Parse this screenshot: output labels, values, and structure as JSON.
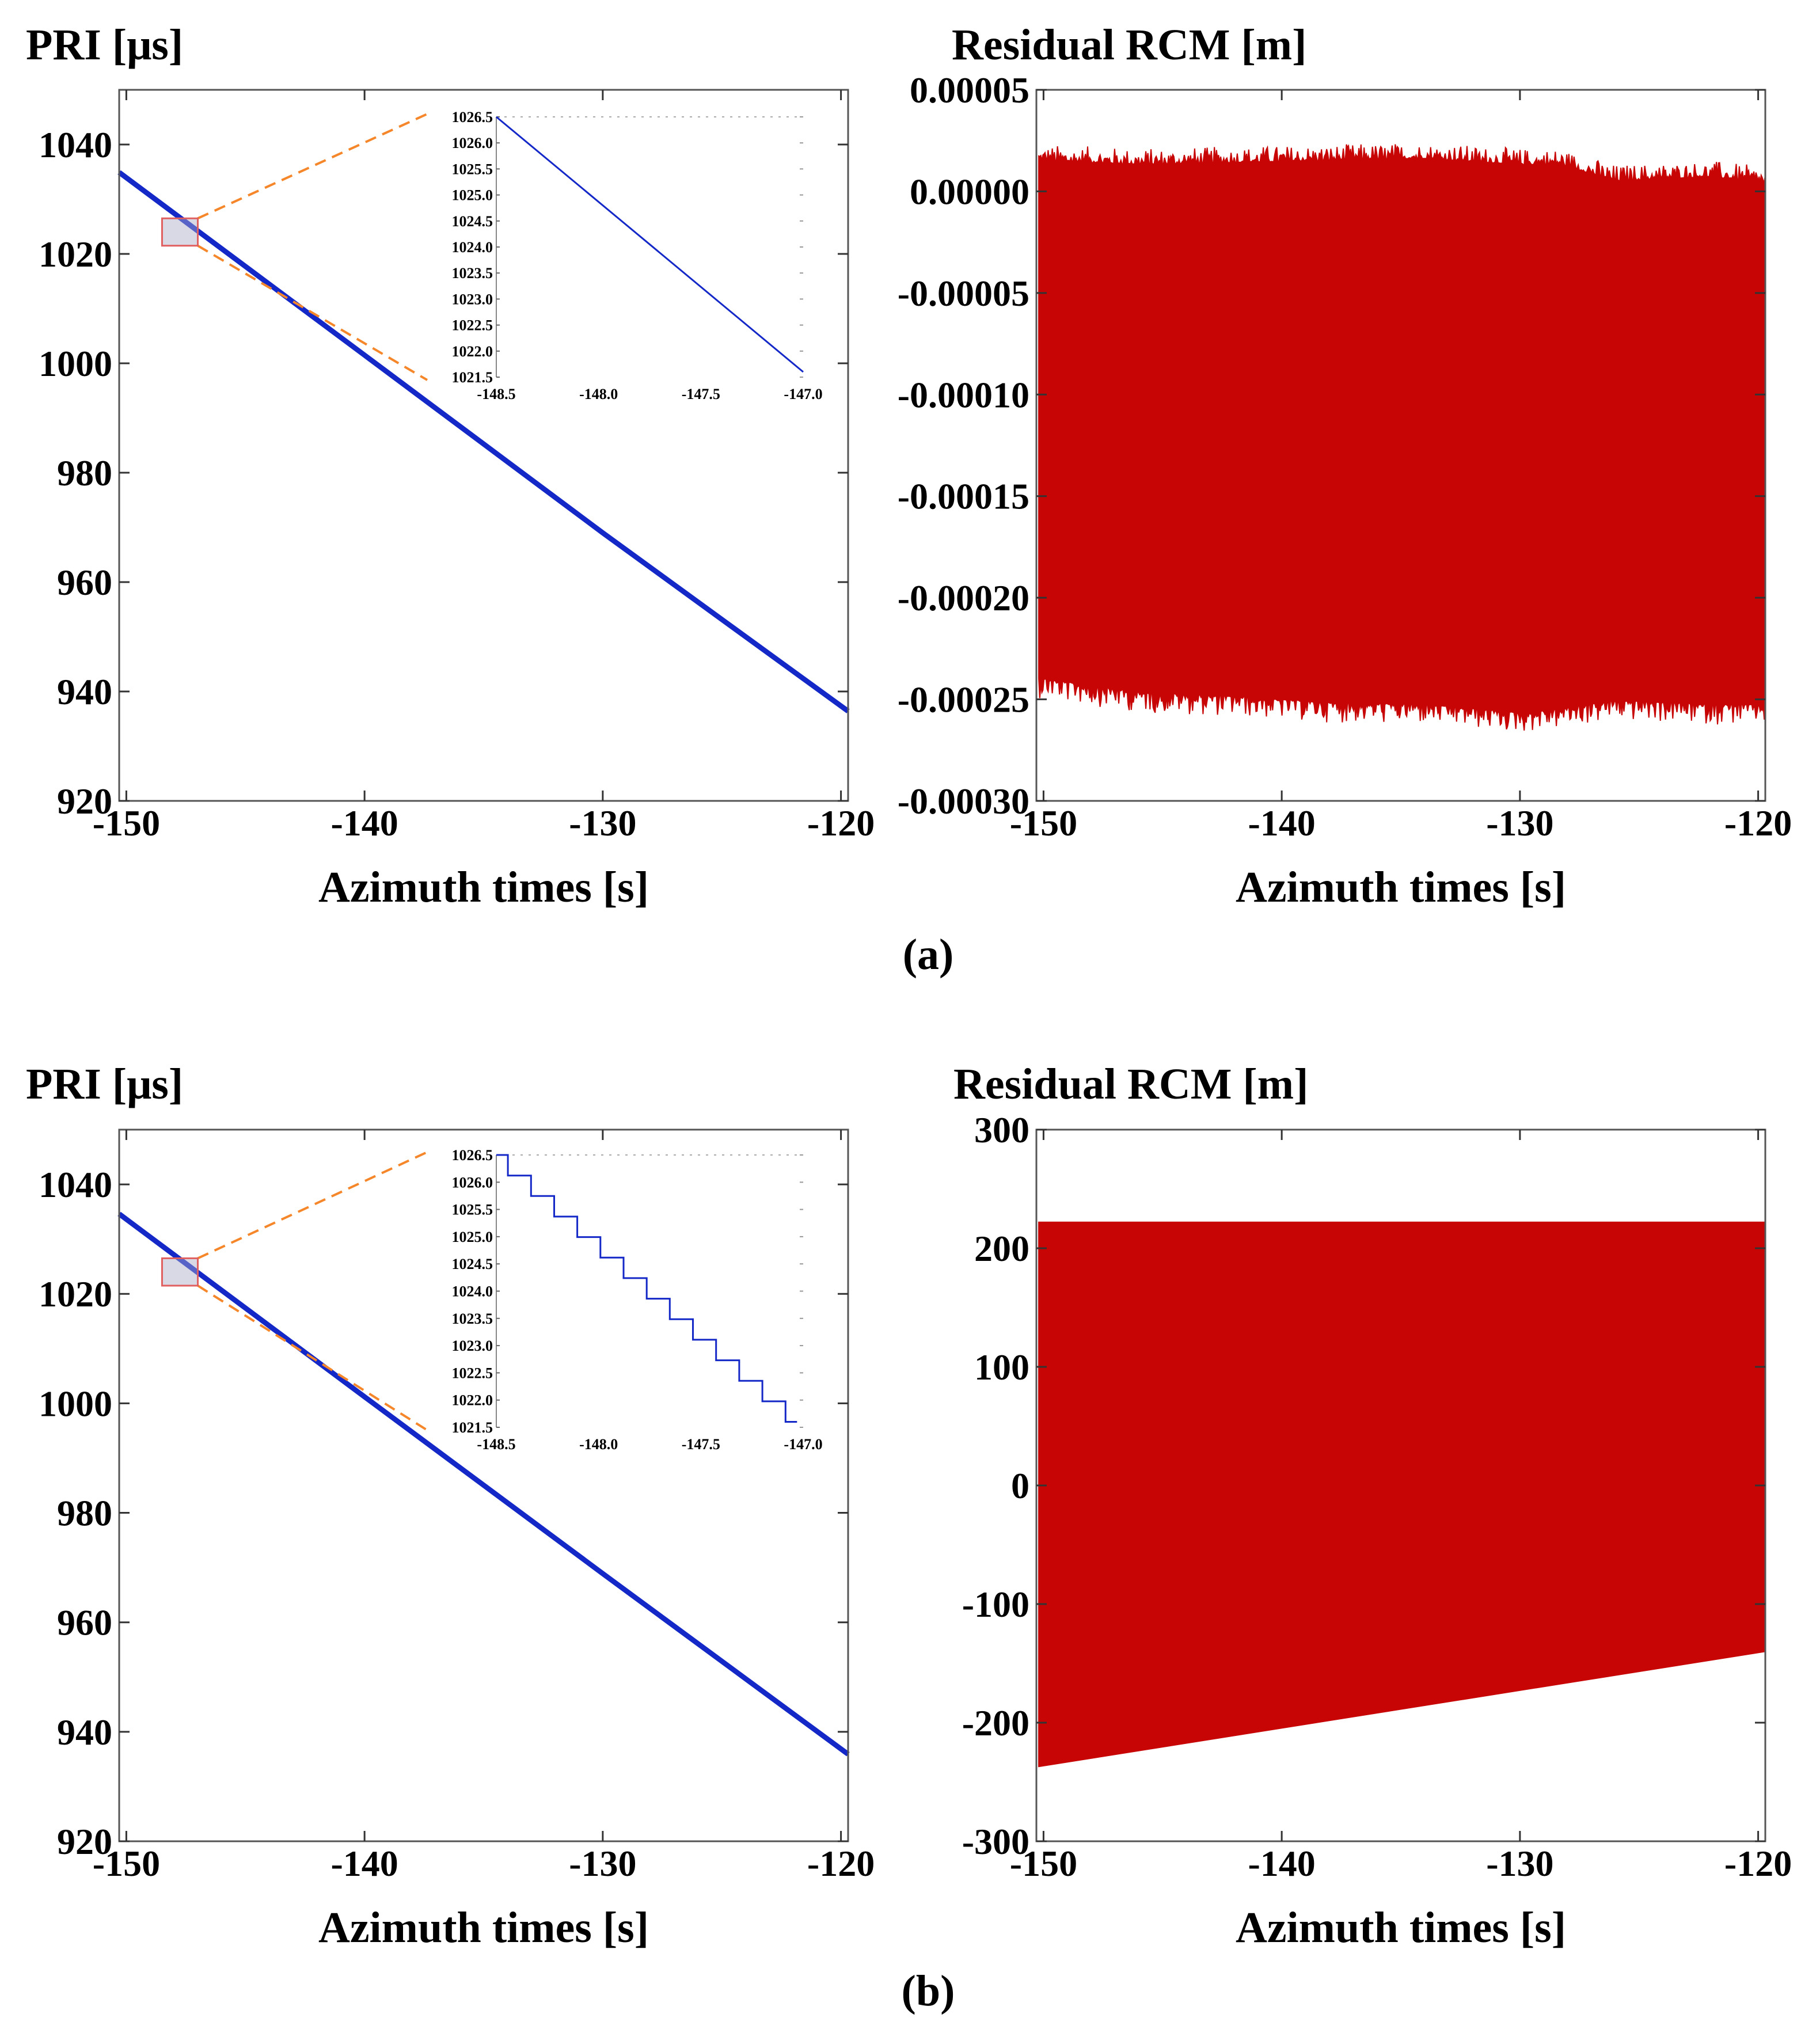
{
  "colors": {
    "pri_line": "#1428c8",
    "rcm_fill": "#c80505",
    "zoom_lines": "#f5862a",
    "zoom_box": "#e06060"
  },
  "chart_data": [
    {
      "id": "a_pri",
      "type": "line",
      "title": "",
      "ylabel": "PRI [μs]",
      "xlabel": "Azimuth times [s]",
      "xlim": [
        -150.3,
        -119.7
      ],
      "ylim": [
        920,
        1050
      ],
      "xticks": [
        -150,
        -140,
        -130,
        -120
      ],
      "yticks": [
        920,
        940,
        960,
        980,
        1000,
        1020,
        1040
      ],
      "xtick_labels": [
        "-150",
        "-140",
        "-130",
        "-120"
      ],
      "ytick_labels": [
        "920",
        "940",
        "960",
        "980",
        "1000",
        "1020",
        "1040"
      ],
      "series": [
        {
          "name": "PRI",
          "x": [
            -150.3,
            -140,
            -130,
            -119.7
          ],
          "y": [
            1034.9,
            1001.5,
            969.0,
            936.4
          ]
        }
      ],
      "zoom_box": {
        "xlim": [
          -148.5,
          -147.0
        ],
        "ylim": [
          1021.5,
          1026.5
        ]
      },
      "inset": {
        "xlim": [
          -148.5,
          -147.0
        ],
        "ylim": [
          1021.5,
          1026.5
        ],
        "xticks": [
          -148.5,
          -148.0,
          -147.5,
          -147.0
        ],
        "xtick_labels": [
          "-148.5",
          "-148.0",
          "-147.5",
          "-147.0"
        ],
        "yticks": [
          1021.5,
          1022.0,
          1022.5,
          1023.0,
          1023.5,
          1024.0,
          1024.5,
          1025.0,
          1025.5,
          1026.0,
          1026.5
        ],
        "ytick_labels": [
          "1021.5",
          "1022.0",
          "1022.5",
          "1023.0",
          "1023.5",
          "1024.0",
          "1024.5",
          "1025.0",
          "1025.5",
          "1026.0",
          "1026.5"
        ],
        "style": "smooth",
        "x": [
          -148.5,
          -147.0
        ],
        "y": [
          1026.5,
          1021.6
        ]
      }
    },
    {
      "id": "a_rcm",
      "type": "area",
      "title": "",
      "ylabel": "Residual RCM [m]",
      "xlabel": "Azimuth times [s]",
      "xlim": [
        -150.3,
        -119.7
      ],
      "ylim": [
        -0.0003,
        5e-05
      ],
      "xticks": [
        -150,
        -140,
        -130,
        -120
      ],
      "yticks": [
        -0.0003,
        -0.00025,
        -0.0002,
        -0.00015,
        -0.0001,
        -5e-05,
        0.0,
        5e-05
      ],
      "xtick_labels": [
        "-150",
        "-140",
        "-130",
        "-120"
      ],
      "ytick_labels": [
        "-0.00030",
        "-0.00025",
        "-0.00020",
        "-0.00015",
        "-0.00010",
        "-0.00005",
        "0.00000",
        "0.00005"
      ],
      "x": [
        -150.2,
        -146,
        -142,
        -138,
        -134,
        -130,
        -128.3,
        -126,
        -122,
        -119.7
      ],
      "upper": [
        1.8e-05,
        1.6e-05,
        1.7e-05,
        1.8e-05,
        1.9e-05,
        1.6e-05,
        1.6e-05,
        8e-06,
        1e-05,
        7e-06
      ],
      "lower": [
        -0.000243,
        -0.00025,
        -0.000252,
        -0.000255,
        -0.000256,
        -0.00026,
        -0.000258,
        -0.000254,
        -0.000256,
        -0.000256
      ],
      "noise_up": 8e-06,
      "noise_down": 1e-05
    },
    {
      "id": "b_pri",
      "type": "line",
      "title": "",
      "ylabel": "PRI [μs]",
      "xlabel": "Azimuth times [s]",
      "xlim": [
        -150.3,
        -119.7
      ],
      "ylim": [
        920,
        1050
      ],
      "xticks": [
        -150,
        -140,
        -130,
        -120
      ],
      "yticks": [
        920,
        940,
        960,
        980,
        1000,
        1020,
        1040
      ],
      "xtick_labels": [
        "-150",
        "-140",
        "-130",
        "-120"
      ],
      "ytick_labels": [
        "920",
        "940",
        "960",
        "980",
        "1000",
        "1020",
        "1040"
      ],
      "series": [
        {
          "name": "PRI",
          "x": [
            -150.3,
            -140,
            -130,
            -119.7
          ],
          "y": [
            1034.6,
            1001.2,
            968.9,
            935.9
          ]
        }
      ],
      "zoom_box": {
        "xlim": [
          -148.5,
          -147.0
        ],
        "ylim": [
          1021.5,
          1026.5
        ]
      },
      "inset": {
        "xlim": [
          -148.5,
          -147.0
        ],
        "ylim": [
          1021.5,
          1026.5
        ],
        "xticks": [
          -148.5,
          -148.0,
          -147.5,
          -147.0
        ],
        "xtick_labels": [
          "-148.5",
          "-148.0",
          "-147.5",
          "-147.0"
        ],
        "yticks": [
          1021.5,
          1022.0,
          1022.5,
          1023.0,
          1023.5,
          1024.0,
          1024.5,
          1025.0,
          1025.5,
          1026.0,
          1026.5
        ],
        "ytick_labels": [
          "1021.5",
          "1022.0",
          "1022.5",
          "1023.0",
          "1023.5",
          "1024.0",
          "1024.5",
          "1025.0",
          "1025.5",
          "1026.0",
          "1026.5"
        ],
        "style": "staircase",
        "x": [
          -148.5,
          -147.03
        ],
        "y": [
          1026.5,
          1021.6
        ],
        "steps": 13
      }
    },
    {
      "id": "b_rcm",
      "type": "area",
      "title": "",
      "ylabel": "Residual RCM [m]",
      "xlabel": "Azimuth times [s]",
      "xlim": [
        -150.3,
        -119.7
      ],
      "ylim": [
        -300,
        300
      ],
      "xticks": [
        -150,
        -140,
        -130,
        -120
      ],
      "yticks": [
        -300,
        -200,
        -100,
        0,
        100,
        200,
        300
      ],
      "xtick_labels": [
        "-150",
        "-140",
        "-130",
        "-120"
      ],
      "ytick_labels": [
        "-300",
        "-200",
        "-100",
        "0",
        "100",
        "200",
        "300"
      ],
      "x": [
        -150.2,
        -119.7
      ],
      "upper": [
        222,
        222
      ],
      "lower": [
        -237,
        -140
      ],
      "noise_up": 0,
      "noise_down": 0
    }
  ],
  "captions": {
    "a": "(a)",
    "b": "(b)"
  }
}
